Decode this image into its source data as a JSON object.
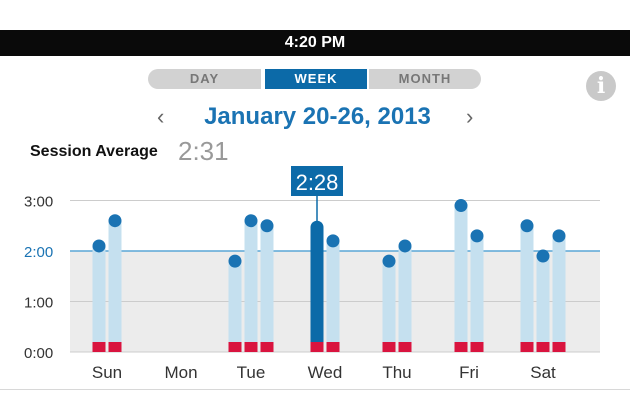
{
  "status_bar": {
    "time": "4:20 PM"
  },
  "view_tabs": [
    {
      "label": "DAY",
      "selected": false
    },
    {
      "label": "WEEK",
      "selected": true
    },
    {
      "label": "MONTH",
      "selected": false
    }
  ],
  "info_icon": "info-icon",
  "nav": {
    "prev_symbol": "‹",
    "next_symbol": "›",
    "date_range": "January 20-26, 2013"
  },
  "session_average": {
    "label": "Session Average",
    "value": "2:31"
  },
  "colors": {
    "accent": "#0c6aa8",
    "bar_light": "#c5e0ef",
    "bar_base": "#d9143f",
    "dot": "#1a73b3",
    "band": "#ececec"
  },
  "chart_data": {
    "type": "bar",
    "categories": [
      "Sun",
      "Mon",
      "Tue",
      "Wed",
      "Thu",
      "Fri",
      "Sat"
    ],
    "y_ticks": [
      "3:00",
      "2:00",
      "1:00",
      "0:00"
    ],
    "ylim": [
      0,
      3.5
    ],
    "average_line": 2.0,
    "highlight": {
      "day": "Wed",
      "label": "2:28"
    },
    "sessions": [
      {
        "day": "Sun",
        "values": [
          2.1,
          2.6
        ]
      },
      {
        "day": "Mon",
        "values": []
      },
      {
        "day": "Tue",
        "values": [
          1.8,
          2.6,
          2.5
        ]
      },
      {
        "day": "Wed",
        "values": [
          2.47,
          2.2
        ]
      },
      {
        "day": "Thu",
        "values": [
          1.8,
          2.1
        ]
      },
      {
        "day": "Fri",
        "values": [
          2.9,
          2.3
        ]
      },
      {
        "day": "Sat",
        "values": [
          2.5,
          1.9,
          2.3
        ]
      }
    ]
  }
}
